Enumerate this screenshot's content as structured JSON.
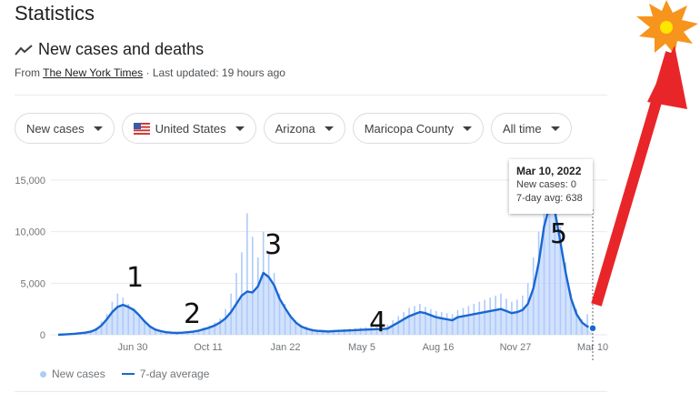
{
  "page": {
    "title": "Statistics",
    "subtitle": "New cases and deaths",
    "source_prefix": "From ",
    "source_link": "The New York Times",
    "source_suffix": " · Last updated: 19 hours ago"
  },
  "filters": [
    {
      "label": "New cases"
    },
    {
      "label": "United States"
    },
    {
      "label": "Arizona"
    },
    {
      "label": "Maricopa County"
    },
    {
      "label": "All time"
    }
  ],
  "legend": {
    "bars": "New cases",
    "line": "7-day average"
  },
  "tooltip": {
    "date": "Mar 10, 2022",
    "cases": "New cases: 0",
    "avg": "7-day avg: 638"
  },
  "annotations": [
    "1",
    "2",
    "3",
    "4",
    "5"
  ],
  "colors": {
    "bar": "#aecbfa",
    "line": "#1967d2",
    "arrow": "#e8262a",
    "star": "#f7941d",
    "star_center": "#ffe600"
  },
  "chart_data": {
    "type": "area",
    "title": "New cases and deaths",
    "x_tick_labels": [
      "Jun 30",
      "Oct 11",
      "Jan 22",
      "May 5",
      "Aug 16",
      "Nov 27",
      "Mar 10"
    ],
    "y_tick_labels": [
      "15,000",
      "10,000",
      "5,000",
      "0"
    ],
    "ylim": [
      0,
      15000
    ],
    "grid": true,
    "legend_placement": "bottom-left",
    "series": [
      {
        "name": "7-day average",
        "values": [
          0,
          30,
          60,
          100,
          150,
          200,
          300,
          500,
          900,
          1500,
          2200,
          2700,
          2900,
          2700,
          2400,
          1900,
          1300,
          800,
          500,
          350,
          250,
          200,
          180,
          200,
          250,
          300,
          400,
          550,
          700,
          900,
          1200,
          1600,
          2200,
          3000,
          3800,
          4200,
          4100,
          4700,
          6000,
          5600,
          4800,
          3500,
          2600,
          1800,
          1200,
          800,
          600,
          450,
          380,
          350,
          320,
          350,
          380,
          400,
          420,
          450,
          480,
          500,
          520,
          550,
          560,
          600,
          900,
          1200,
          1500,
          1800,
          2000,
          2200,
          2100,
          1900,
          1700,
          1600,
          1500,
          1400,
          1700,
          1800,
          1900,
          2000,
          2100,
          2200,
          2300,
          2400,
          2500,
          2300,
          2100,
          2200,
          2400,
          3000,
          4500,
          7000,
          10500,
          12500,
          12000,
          9000,
          6000,
          3500,
          2000,
          1200,
          800,
          638
        ]
      },
      {
        "name": "New cases",
        "values": [
          0,
          50,
          80,
          150,
          200,
          250,
          400,
          700,
          1300,
          2000,
          3200,
          4000,
          3600,
          3000,
          2600,
          2000,
          1400,
          900,
          550,
          400,
          300,
          250,
          220,
          250,
          300,
          350,
          500,
          700,
          900,
          1200,
          1600,
          2500,
          4000,
          6000,
          8000,
          11800,
          9500,
          7500,
          10000,
          8000,
          6000,
          4000,
          3000,
          2000,
          1400,
          1000,
          800,
          600,
          500,
          450,
          420,
          450,
          500,
          550,
          600,
          650,
          700,
          750,
          800,
          850,
          900,
          1000,
          1400,
          1800,
          2200,
          2600,
          2800,
          3000,
          2700,
          2500,
          2300,
          2200,
          2100,
          2000,
          2400,
          2600,
          2800,
          3000,
          3200,
          3400,
          3600,
          3800,
          4000,
          3500,
          3200,
          3400,
          3800,
          5000,
          7500,
          10000,
          13000,
          14500,
          13500,
          10500,
          7000,
          4000,
          2500,
          1500,
          2000,
          0
        ]
      }
    ]
  }
}
